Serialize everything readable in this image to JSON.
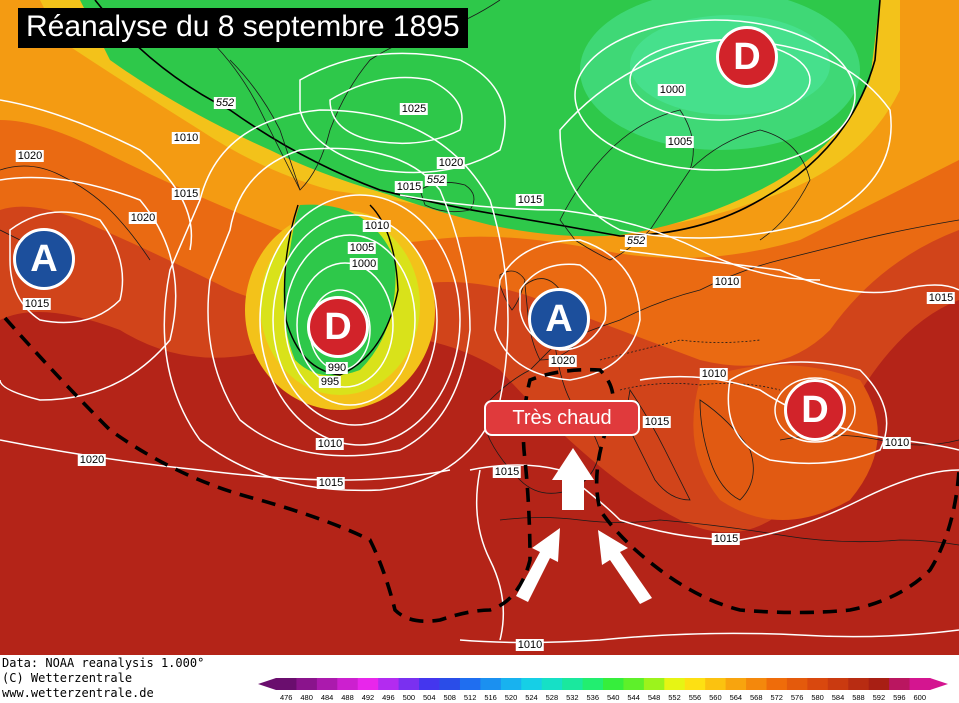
{
  "title": "Réanalyse du 8 septembre 1895",
  "annotation": "Très chaud",
  "credits": {
    "line1": "Data: NOAA reanalysis 1.000°",
    "line2": "(C) Wetterzentrale",
    "line3": "www.wetterzentrale.de"
  },
  "pressure_centers": [
    {
      "type": "A",
      "kind": "high",
      "where": "west Atlantic"
    },
    {
      "type": "A",
      "kind": "high",
      "where": "English Channel"
    },
    {
      "type": "D",
      "kind": "low",
      "where": "Scandinavia"
    },
    {
      "type": "D",
      "kind": "low",
      "where": "west of Ireland"
    },
    {
      "type": "D",
      "kind": "low",
      "where": "Balkans"
    }
  ],
  "isobar_labels": [
    "1020",
    "1010",
    "1015",
    "1020",
    "1015",
    "1025",
    "1020",
    "1015",
    "1015",
    "1010",
    "1005",
    "1000",
    "990",
    "995",
    "1000",
    "1005",
    "1010",
    "1020",
    "1015",
    "1010",
    "1015",
    "1010",
    "1010",
    "1015",
    "1015",
    "1015",
    "1010",
    "1020",
    "1015",
    "1010"
  ],
  "thickness_labels": [
    "552",
    "552",
    "552"
  ],
  "colorbar": {
    "values": [
      476,
      480,
      484,
      488,
      492,
      496,
      500,
      504,
      508,
      512,
      516,
      520,
      524,
      528,
      532,
      536,
      540,
      544,
      548,
      552,
      556,
      560,
      564,
      568,
      572,
      576,
      580,
      584,
      588,
      592,
      596,
      600
    ],
    "colors": [
      "#6a0e6e",
      "#8a148c",
      "#ab1aad",
      "#cc20cf",
      "#e826eb",
      "#b32bf0",
      "#7a30f0",
      "#4436ee",
      "#2a4de8",
      "#1f6ef0",
      "#1b90f0",
      "#18b2ef",
      "#16cfe6",
      "#16e0c6",
      "#1ae89e",
      "#22ee70",
      "#36ee3c",
      "#5ef02a",
      "#9cf31c",
      "#e6f514",
      "#fde013",
      "#fbc210",
      "#f8a40e",
      "#f4880c",
      "#ef6c0a",
      "#e45a0c",
      "#d9480e",
      "#ca3a10",
      "#b82c12",
      "#a81f14",
      "#ba1660",
      "#d41590"
    ]
  },
  "colors": {
    "ocean_warm": "#c8341c",
    "hot": "#b52418",
    "low_green": "#2ec84a",
    "yellow_band": "#f3c21a"
  }
}
